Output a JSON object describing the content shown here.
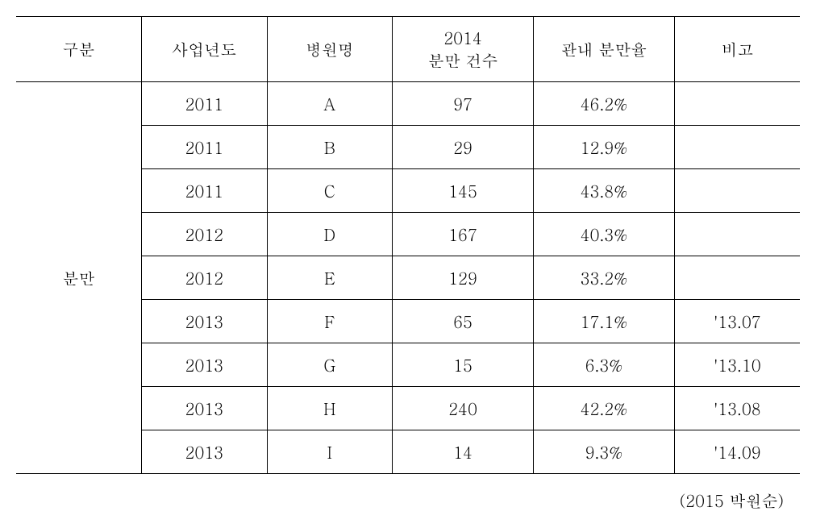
{
  "table": {
    "headers": {
      "col1": "구분",
      "col2": "사업년도",
      "col3": "병원명",
      "col4_line1": "2014",
      "col4_line2": "분만 건수",
      "col5": "관내 분만율",
      "col6": "비고"
    },
    "category": "분만",
    "rows": [
      {
        "year": "2011",
        "hospital": "A",
        "count": "97",
        "rate": "46.2%",
        "note": ""
      },
      {
        "year": "2011",
        "hospital": "B",
        "count": "29",
        "rate": "12.9%",
        "note": ""
      },
      {
        "year": "2011",
        "hospital": "C",
        "count": "145",
        "rate": "43.8%",
        "note": ""
      },
      {
        "year": "2012",
        "hospital": "D",
        "count": "167",
        "rate": "40.3%",
        "note": ""
      },
      {
        "year": "2012",
        "hospital": "E",
        "count": "129",
        "rate": "33.2%",
        "note": ""
      },
      {
        "year": "2013",
        "hospital": "F",
        "count": "65",
        "rate": "17.1%",
        "note": "'13.07"
      },
      {
        "year": "2013",
        "hospital": "G",
        "count": "15",
        "rate": "6.3%",
        "note": "'13.10"
      },
      {
        "year": "2013",
        "hospital": "H",
        "count": "240",
        "rate": "42.2%",
        "note": "'13.08"
      },
      {
        "year": "2013",
        "hospital": "I",
        "count": "14",
        "rate": "9.3%",
        "note": "'14.09"
      }
    ]
  },
  "citation": "(2015 박원순)",
  "styling": {
    "font_family": "Batang, serif",
    "font_size": 20,
    "border_color": "#000000",
    "background_color": "#ffffff",
    "outer_border_width": 1.5,
    "inner_border_width": 1
  }
}
